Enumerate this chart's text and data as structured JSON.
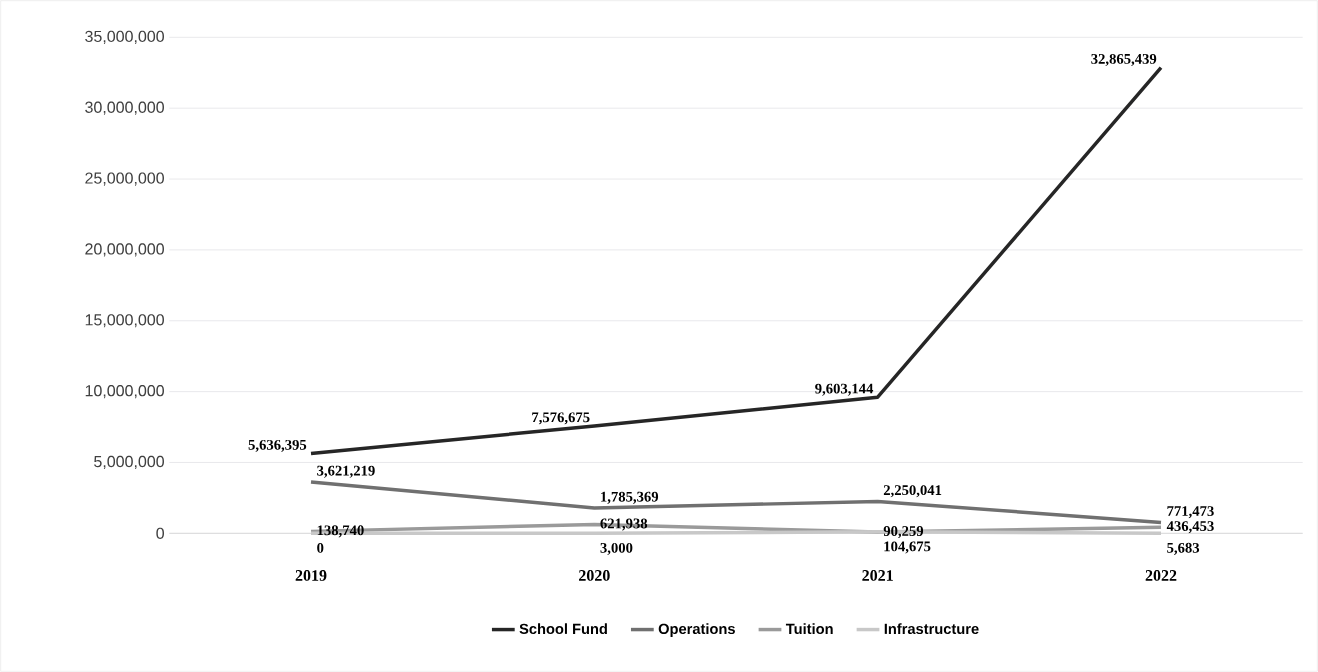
{
  "chart_data": {
    "type": "line",
    "categories": [
      "2019",
      "2020",
      "2021",
      "2022"
    ],
    "series": [
      {
        "name": "School Fund",
        "color": "#262626",
        "values": [
          5636395,
          7576675,
          9603144,
          32865439
        ],
        "value_labels": [
          "5,636,395",
          "7,576,675",
          "9,603,144",
          "32,865,439"
        ]
      },
      {
        "name": "Operations",
        "color": "#707070",
        "values": [
          3621219,
          1785369,
          2250041,
          771473
        ],
        "value_labels": [
          "3,621,219",
          "1,785,369",
          "2,250,041",
          "771,473"
        ]
      },
      {
        "name": "Tuition",
        "color": "#9a9a9a",
        "values": [
          138740,
          621938,
          90259,
          436453
        ],
        "value_labels": [
          "138,740",
          "621,938",
          "90,259",
          "436,453"
        ]
      },
      {
        "name": "Infrastructure",
        "color": "#c8c8c8",
        "values": [
          0,
          3000,
          104675,
          5683
        ],
        "value_labels": [
          "0",
          "3,000",
          "104,675",
          "5,683"
        ]
      }
    ],
    "ylim": [
      0,
      35000000
    ],
    "yticks": [
      0,
      {
        "value": 5000000,
        "label": "5,000,000"
      },
      {
        "value": 10000000,
        "label": "10,000,000"
      },
      {
        "value": 15000000,
        "label": "15,000,000"
      },
      {
        "value": 20000000,
        "label": "20,000,000"
      },
      {
        "value": 25000000,
        "label": "25,000,000"
      },
      {
        "value": 30000000,
        "label": "30,000,000"
      },
      {
        "value": 35000000,
        "label": "35,000,000"
      }
    ],
    "grid": "y",
    "legend": "bottom",
    "marker": "none",
    "line_style": "solid"
  }
}
